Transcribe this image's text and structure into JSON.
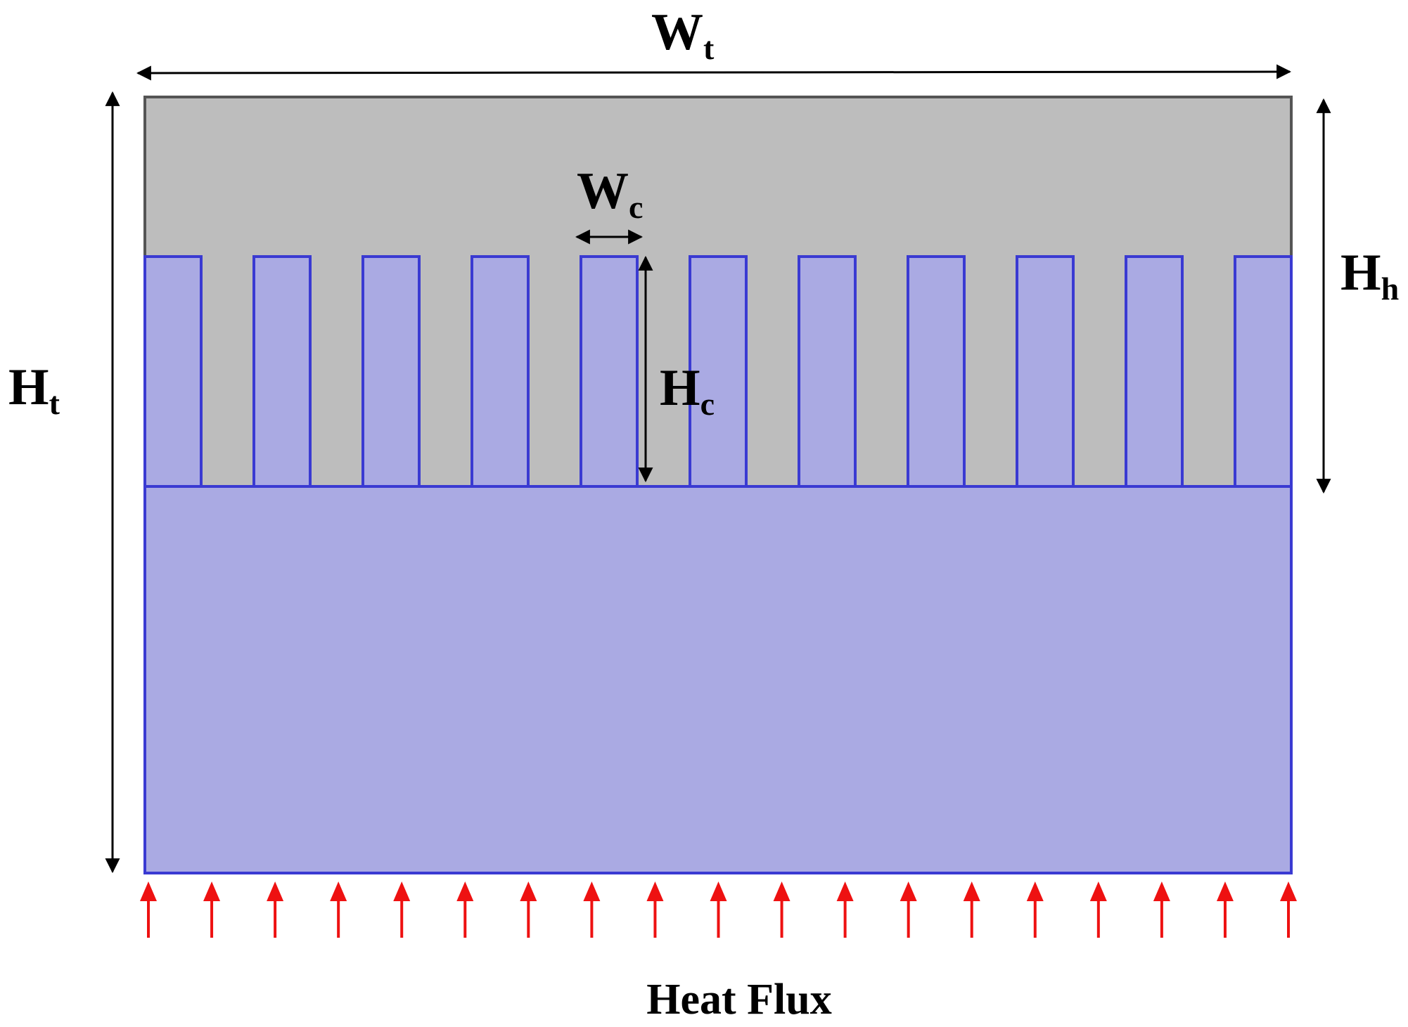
{
  "colors": {
    "solid_region": "#bdbdbd",
    "solid_border": "#555555",
    "fluid_region": "#aaaae3",
    "fluid_border": "#3a3ad2",
    "dimension_line": "#000000",
    "heat_flux_arrow": "#ee1111"
  },
  "labels": {
    "total_width": {
      "main": "W",
      "sub": "t"
    },
    "total_height": {
      "main": "H",
      "sub": "t"
    },
    "heat_sink_height": {
      "main": "H",
      "sub": "h"
    },
    "channel_width": {
      "main": "W",
      "sub": "c"
    },
    "channel_height": {
      "main": "H",
      "sub": "c"
    },
    "heat_flux": "Heat Flux"
  },
  "channel_count": 11,
  "heat_flux_arrow_count": 19
}
